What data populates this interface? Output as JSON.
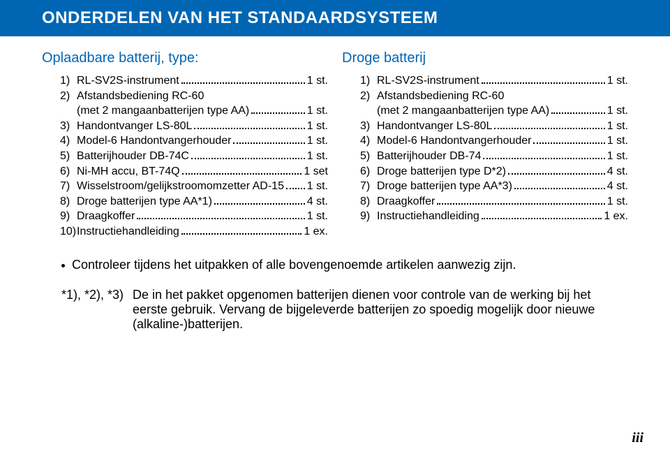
{
  "banner": {
    "title": "ONDERDELEN VAN HET STANDAARDSYSTEEM"
  },
  "left": {
    "heading": "Oplaadbare batterij, type:",
    "items": [
      {
        "n": "1)",
        "label": "RL-SV2S-instrument",
        "qty": "1 st."
      },
      {
        "n": "2)",
        "label": "Afstandsbediening RC-60"
      },
      {
        "n": "",
        "label": "(met 2 mangaanbatterijen type AA)",
        "qty": "1 st.",
        "cont": true
      },
      {
        "n": "3)",
        "label": "Handontvanger LS-80L",
        "qty": "1 st."
      },
      {
        "n": "4)",
        "label": "Model-6 Handontvangerhouder",
        "qty": "1 st."
      },
      {
        "n": "5)",
        "label": "Batterijhouder DB-74C",
        "qty": "1 st."
      },
      {
        "n": "6)",
        "label": "Ni-MH accu,  BT-74Q",
        "qty": "1 set"
      },
      {
        "n": "7)",
        "label": "Wisselstroom/gelijkstroomomzetter AD-15",
        "qty": "1 st."
      },
      {
        "n": "8)",
        "label": "Droge batterijen type AA*1)",
        "qty": "4 st."
      },
      {
        "n": "9)",
        "label": "Draagkoffer",
        "qty": "1 st."
      },
      {
        "n": "10)",
        "label": "Instructiehandleiding",
        "qty": "1 ex."
      }
    ]
  },
  "right": {
    "heading": "Droge batterij",
    "items": [
      {
        "n": "1)",
        "label": "RL-SV2S-instrument",
        "qty": " 1 st."
      },
      {
        "n": "2)",
        "label": "Afstandsbediening RC-60"
      },
      {
        "n": "",
        "label": "(met 2 mangaanbatterijen type AA)",
        "qty": " 1 st.",
        "cont": true
      },
      {
        "n": "3)",
        "label": "Handontvanger LS-80L",
        "qty": " 1 st."
      },
      {
        "n": "4)",
        "label": "Model-6 Handontvangerhouder",
        "qty": " 1 st."
      },
      {
        "n": "5)",
        "label": "Batterijhouder DB-74",
        "qty": " 1 st."
      },
      {
        "n": "6)",
        "label": "Droge batterijen type D*2)",
        "qty": " 4 st."
      },
      {
        "n": "7)",
        "label": "Droge batterijen type AA*3)",
        "qty": " 4 st."
      },
      {
        "n": "8)",
        "label": "Draagkoffer",
        "qty": " 1 st."
      },
      {
        "n": "9)",
        "label": "Instructiehandleiding",
        "qty": " 1 ex."
      }
    ]
  },
  "bullet": "Controleer tijdens het uitpakken of alle bovengenoemde artikelen aanwezig zijn.",
  "footnote": {
    "tag": "*1), *2), *3)",
    "text": "De in het pakket opgenomen batterijen dienen voor controle van de werking bij het eerste gebruik. Vervang de bijgeleverde batterijen zo spoedig mogelijk door nieuwe (alkaline-)batterijen."
  },
  "pagenum": "iii",
  "colors": {
    "brand_blue": "#0066b3",
    "text": "#000000",
    "background": "#ffffff"
  }
}
